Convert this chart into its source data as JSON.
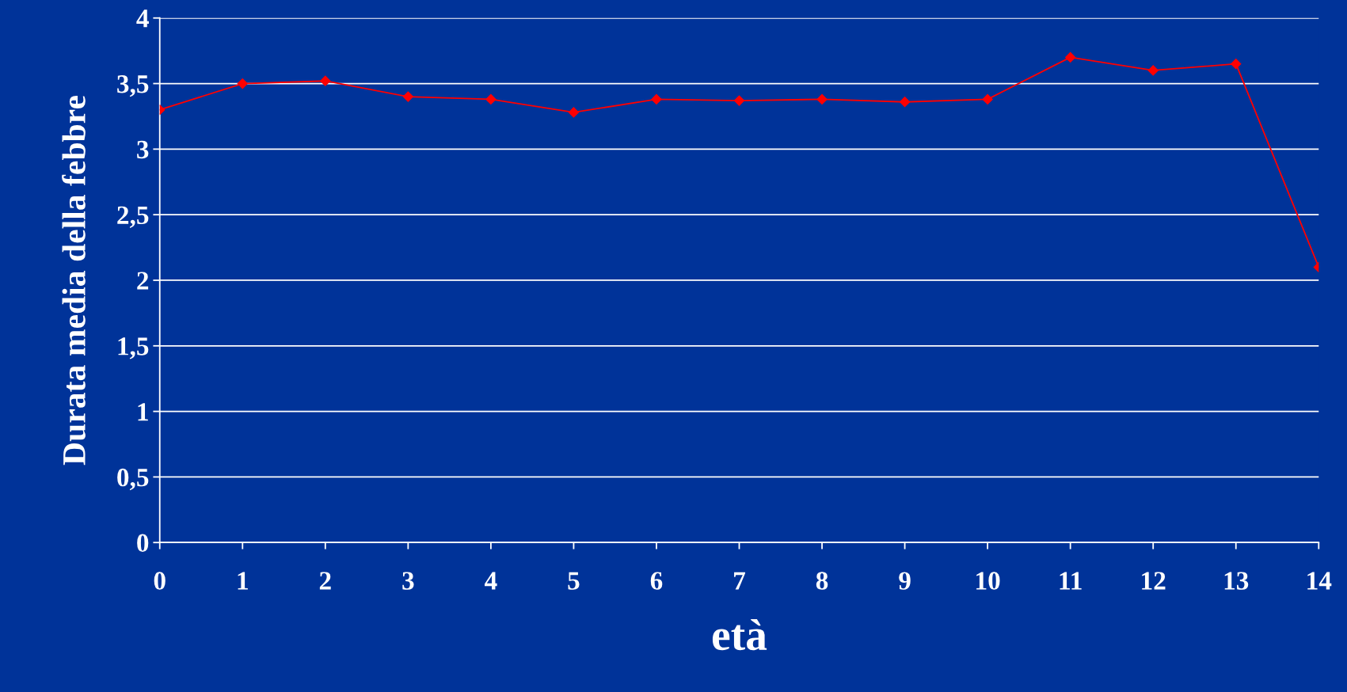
{
  "chart_data": {
    "type": "line",
    "xlabel": "età",
    "ylabel": "Durata media della febbre",
    "categories": [
      "0",
      "1",
      "2",
      "3",
      "4",
      "5",
      "6",
      "7",
      "8",
      "9",
      "10",
      "11",
      "12",
      "13",
      "14"
    ],
    "series": [
      {
        "color": "#ff0000",
        "values": [
          3.3,
          3.5,
          3.52,
          3.4,
          3.38,
          3.28,
          3.38,
          3.37,
          3.38,
          3.36,
          3.38,
          3.7,
          3.6,
          3.65,
          2.1
        ]
      }
    ],
    "ylim": [
      0,
      4
    ],
    "yticks": [
      0,
      {
        "value": 0.5,
        "label": "0,5"
      },
      1,
      {
        "value": 1.5,
        "label": "1,5"
      },
      2,
      {
        "value": 2.5,
        "label": "2,5"
      },
      3,
      {
        "value": 3.5,
        "label": "3,5"
      },
      4
    ],
    "grid": "y",
    "legend": false,
    "marker": "diamond",
    "line_style": "solid"
  }
}
